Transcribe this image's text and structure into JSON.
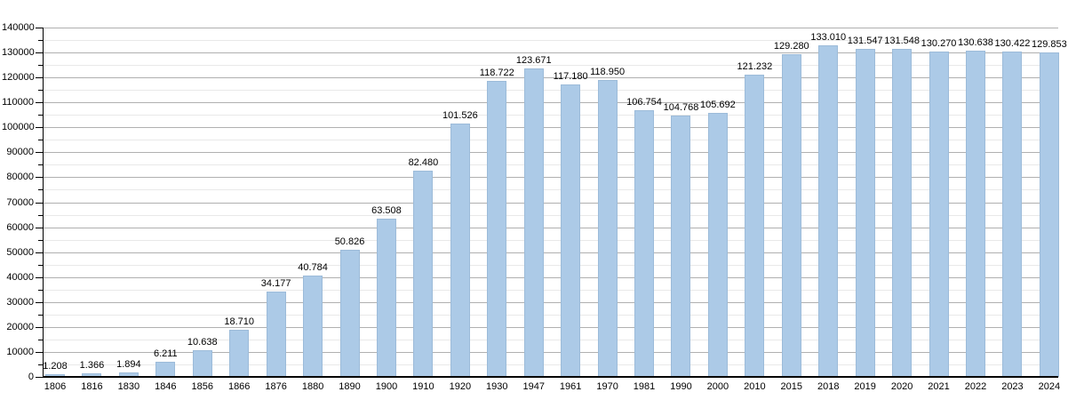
{
  "chart_data": {
    "type": "bar",
    "title": "",
    "xlabel": "",
    "ylabel": "",
    "categories": [
      "1806",
      "1816",
      "1830",
      "1846",
      "1856",
      "1866",
      "1876",
      "1880",
      "1890",
      "1900",
      "1910",
      "1920",
      "1930",
      "1947",
      "1961",
      "1970",
      "1981",
      "1990",
      "2000",
      "2010",
      "2015",
      "2018",
      "2019",
      "2020",
      "2021",
      "2022",
      "2023",
      "2024"
    ],
    "values": [
      1208,
      1366,
      1894,
      6211,
      10638,
      18710,
      34177,
      40784,
      50826,
      63508,
      82480,
      101526,
      118722,
      123671,
      117180,
      118950,
      106754,
      104768,
      105692,
      121232,
      129280,
      133010,
      131547,
      131548,
      130270,
      130638,
      130422,
      129853
    ],
    "value_labels": [
      "1.208",
      "1.366",
      "1.894",
      "6.211",
      "10.638",
      "18.710",
      "34.177",
      "40.784",
      "50.826",
      "63.508",
      "82.480",
      "101.526",
      "118.722",
      "123.671",
      "117.180",
      "118.950",
      "106.754",
      "104.768",
      "105.692",
      "121.232",
      "129.280",
      "133.010",
      "131.547",
      "131.548",
      "130.270",
      "130.638",
      "130.422",
      "129.853"
    ],
    "ylim": [
      0,
      140000
    ],
    "y_major_step": 10000,
    "y_minor_step": 5000,
    "y_tick_labels": [
      "0",
      "10000",
      "20000",
      "30000",
      "40000",
      "50000",
      "60000",
      "70000",
      "80000",
      "90000",
      "100000",
      "110000",
      "120000",
      "130000",
      "140000"
    ],
    "grid": "on",
    "legend_position": "none",
    "colors": {
      "bar_fill": "#accae7",
      "bar_border": "#9cbbd9",
      "major_grid": "#b0b0b0",
      "minor_grid": "#e9e9e9",
      "axis": "#000000",
      "text": "#000000",
      "background": "#ffffff"
    }
  }
}
